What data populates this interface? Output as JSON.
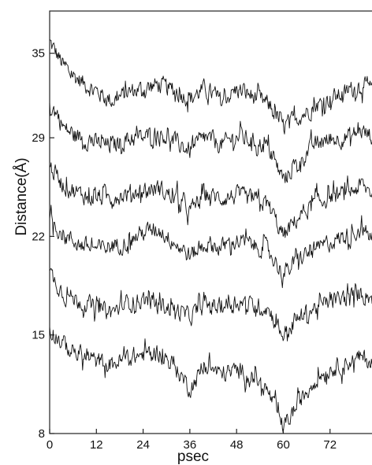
{
  "chart_data": {
    "type": "line",
    "title": "",
    "xlabel": "psec",
    "ylabel": "Distance(Å)",
    "xlim": [
      0,
      85
    ],
    "ylim": [
      8,
      38
    ],
    "x_ticks": [
      0,
      12,
      24,
      36,
      48,
      60,
      72
    ],
    "x_tick_labels": [
      "0",
      "12",
      "24",
      "36",
      "48",
      "60",
      "72"
    ],
    "y_ticks": [
      8,
      15,
      22,
      29,
      35
    ],
    "y_tick_labels": [
      "8",
      "15",
      "22",
      "29",
      "35"
    ],
    "grid": false,
    "legend": "none",
    "line_color": "#111111",
    "x": [
      0,
      4,
      8,
      12,
      16,
      20,
      24,
      28,
      32,
      36,
      40,
      44,
      48,
      52,
      56,
      60,
      64,
      68,
      72,
      76,
      80,
      85
    ],
    "series": [
      {
        "values": [
          35.8,
          33.9,
          33.0,
          32.3,
          31.6,
          32.2,
          32.5,
          32.8,
          32.3,
          31.8,
          32.5,
          31.6,
          32.4,
          32.0,
          31.4,
          29.8,
          30.5,
          31.2,
          31.8,
          32.2,
          32.8,
          32.0
        ]
      },
      {
        "values": [
          31.5,
          29.6,
          29.0,
          28.6,
          28.4,
          28.9,
          29.0,
          29.4,
          28.7,
          28.1,
          29.0,
          28.5,
          29.1,
          28.8,
          28.3,
          26.0,
          27.3,
          28.5,
          28.9,
          29.0,
          29.5,
          28.8
        ]
      },
      {
        "values": [
          27.0,
          25.5,
          25.0,
          24.7,
          24.8,
          25.0,
          25.3,
          25.4,
          24.7,
          23.8,
          25.0,
          24.7,
          24.9,
          24.6,
          24.3,
          22.0,
          23.4,
          24.3,
          24.8,
          25.0,
          25.6,
          24.6
        ]
      },
      {
        "values": [
          23.2,
          22.0,
          21.4,
          21.1,
          21.3,
          21.6,
          22.3,
          22.5,
          21.6,
          20.6,
          21.5,
          21.2,
          21.7,
          21.4,
          21.1,
          19.3,
          20.4,
          21.0,
          21.6,
          22.0,
          22.5,
          21.4
        ]
      },
      {
        "values": [
          19.4,
          17.8,
          17.4,
          16.9,
          16.6,
          17.3,
          17.5,
          17.2,
          16.8,
          16.3,
          17.2,
          17.0,
          17.4,
          17.1,
          16.9,
          15.0,
          16.2,
          16.9,
          17.4,
          17.6,
          18.0,
          17.4
        ]
      },
      {
        "values": [
          15.5,
          14.2,
          13.6,
          13.1,
          12.9,
          13.4,
          13.6,
          13.8,
          12.8,
          11.2,
          12.8,
          12.2,
          12.5,
          12.1,
          11.0,
          8.4,
          10.2,
          11.8,
          12.6,
          13.0,
          13.4,
          12.8
        ]
      }
    ]
  }
}
